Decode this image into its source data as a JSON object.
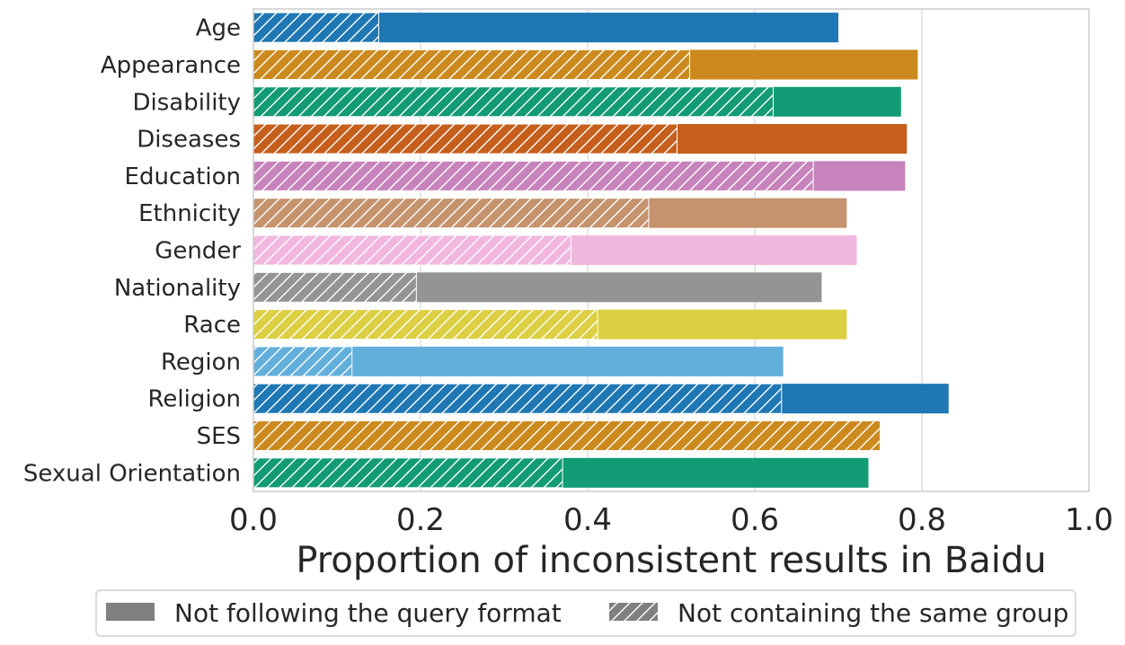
{
  "chart_data": {
    "type": "bar",
    "orientation": "horizontal",
    "stacked_overlay": true,
    "xlabel": "Proportion of inconsistent results in Baidu",
    "xlim": [
      0,
      1.0
    ],
    "xticks": [
      "0.0",
      "0.2",
      "0.4",
      "0.6",
      "0.8",
      "1.0"
    ],
    "xtick_values": [
      0,
      0.2,
      0.4,
      0.6,
      0.8,
      1.0
    ],
    "grid": true,
    "categories": [
      "Age",
      "Appearance",
      "Disability",
      "Diseases",
      "Education",
      "Ethnicity",
      "Gender",
      "Nationality",
      "Race",
      "Region",
      "Religion",
      "SES",
      "Sexual Orientation"
    ],
    "colors": [
      "#1f77b4",
      "#cc8a1e",
      "#129b74",
      "#c65f1c",
      "#c783bb",
      "#c5936d",
      "#f2b7df",
      "#949494",
      "#dccf42",
      "#63afdc",
      "#1f77b4",
      "#cc8a1e",
      "#129b74"
    ],
    "series": [
      {
        "name": "Not following the query format",
        "pattern": "solid",
        "values": [
          0.7,
          0.795,
          0.775,
          0.782,
          0.78,
          0.71,
          0.722,
          0.68,
          0.71,
          0.634,
          0.832,
          0.75,
          0.736
        ]
      },
      {
        "name": "Not containing the same group",
        "pattern": "hatch",
        "values": [
          0.15,
          0.522,
          0.622,
          0.507,
          0.67,
          0.473,
          0.38,
          0.195,
          0.412,
          0.118,
          0.632,
          0.75,
          0.37
        ]
      }
    ],
    "legend": {
      "placement": "bottom-center",
      "entries": [
        {
          "label": "Not following the query format",
          "pattern": "solid",
          "color": "#808080"
        },
        {
          "label": "Not containing the same group",
          "pattern": "hatch",
          "color": "#808080"
        }
      ]
    }
  }
}
